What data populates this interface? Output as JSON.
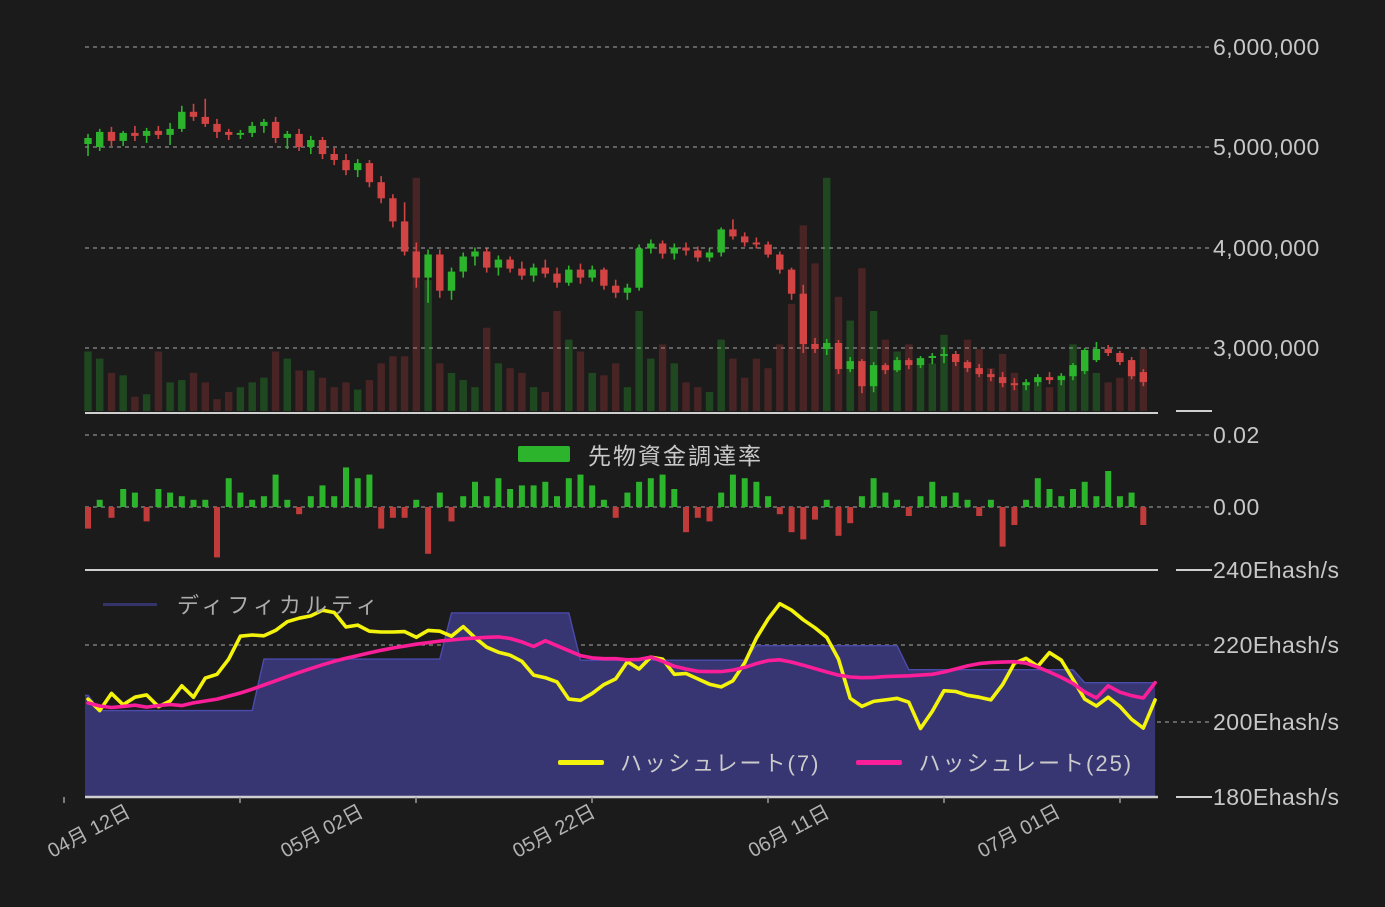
{
  "colors": {
    "background": "#1b1b1b",
    "candle_up": "#2cb42c",
    "candle_down": "#d24444",
    "funding_up": "#2cb42c",
    "funding_down": "#c23b3b",
    "volume_up": "rgba(46,180,46,0.30)",
    "volume_down": "rgba(205,60,60,0.26)",
    "difficulty_fill": "#373572",
    "difficulty_line": "#4b4bad",
    "difficulty_swatch": "#34346a",
    "hashrate7": "#f3f30b",
    "hashrate25": "#fb1e99",
    "grid": "#c4c4c4",
    "border": "#cfcfcf",
    "axis_text": "#c7c7c7"
  },
  "axis_right": {
    "labels": [
      "6,000,000",
      "5,000,000",
      "4,000,000",
      "3,000,000",
      "0.02",
      "0.00",
      "240Ehash/s",
      "220Ehash/s",
      "200Ehash/s",
      "180Ehash/s"
    ]
  },
  "xaxis": {
    "labels": [
      "04月 12日",
      "05月 02日",
      "05月 22日",
      "06月 11日",
      "07月 01日"
    ],
    "label_day_indices": [
      4,
      24,
      44,
      64,
      84
    ]
  },
  "legends": {
    "funding": "先物資金調達率",
    "difficulty": "ディフィカルティ",
    "hashrate7": "ハッシュレート(7)",
    "hashrate25": "ハッシュレート(25)"
  },
  "chart_data": [
    {
      "id": "price",
      "type": "candlestick",
      "unit": "million JPY",
      "ylim": [
        2.4,
        6.2
      ],
      "ytick_values": [
        6000000,
        5000000,
        4000000,
        3000000
      ],
      "grid": true,
      "candles": [
        [
          5.03,
          5.13,
          4.91,
          5.09
        ],
        [
          5.0,
          5.18,
          4.96,
          5.15
        ],
        [
          5.15,
          5.2,
          5.01,
          5.06
        ],
        [
          5.06,
          5.16,
          5.01,
          5.14
        ],
        [
          5.14,
          5.21,
          5.06,
          5.11
        ],
        [
          5.11,
          5.19,
          5.04,
          5.16
        ],
        [
          5.16,
          5.21,
          5.08,
          5.12
        ],
        [
          5.12,
          5.24,
          5.02,
          5.18
        ],
        [
          5.18,
          5.41,
          5.15,
          5.35
        ],
        [
          5.35,
          5.43,
          5.26,
          5.3
        ],
        [
          5.3,
          5.48,
          5.2,
          5.23
        ],
        [
          5.23,
          5.28,
          5.09,
          5.15
        ],
        [
          5.15,
          5.18,
          5.07,
          5.12
        ],
        [
          5.12,
          5.17,
          5.08,
          5.14
        ],
        [
          5.14,
          5.25,
          5.1,
          5.21
        ],
        [
          5.21,
          5.28,
          5.14,
          5.25
        ],
        [
          5.25,
          5.3,
          5.04,
          5.09
        ],
        [
          5.09,
          5.16,
          4.98,
          5.13
        ],
        [
          5.13,
          5.18,
          4.96,
          5.0
        ],
        [
          5.0,
          5.11,
          4.93,
          5.07
        ],
        [
          5.07,
          5.1,
          4.88,
          4.93
        ],
        [
          4.93,
          4.99,
          4.82,
          4.87
        ],
        [
          4.87,
          4.93,
          4.72,
          4.77
        ],
        [
          4.77,
          4.88,
          4.7,
          4.84
        ],
        [
          4.84,
          4.87,
          4.6,
          4.65
        ],
        [
          4.65,
          4.71,
          4.44,
          4.49
        ],
        [
          4.49,
          4.53,
          4.2,
          4.26
        ],
        [
          4.26,
          4.45,
          3.92,
          3.96
        ],
        [
          3.96,
          4.05,
          3.6,
          3.7
        ],
        [
          3.7,
          3.98,
          3.45,
          3.93
        ],
        [
          3.93,
          3.98,
          3.5,
          3.57
        ],
        [
          3.57,
          3.8,
          3.48,
          3.76
        ],
        [
          3.76,
          3.95,
          3.7,
          3.91
        ],
        [
          3.91,
          4.0,
          3.82,
          3.96
        ],
        [
          3.96,
          3.99,
          3.75,
          3.8
        ],
        [
          3.8,
          3.92,
          3.72,
          3.88
        ],
        [
          3.88,
          3.91,
          3.75,
          3.79
        ],
        [
          3.79,
          3.86,
          3.68,
          3.72
        ],
        [
          3.72,
          3.84,
          3.66,
          3.8
        ],
        [
          3.8,
          3.88,
          3.7,
          3.74
        ],
        [
          3.74,
          3.8,
          3.6,
          3.65
        ],
        [
          3.65,
          3.82,
          3.62,
          3.78
        ],
        [
          3.78,
          3.84,
          3.64,
          3.7
        ],
        [
          3.7,
          3.82,
          3.66,
          3.78
        ],
        [
          3.78,
          3.8,
          3.58,
          3.62
        ],
        [
          3.62,
          3.68,
          3.5,
          3.55
        ],
        [
          3.55,
          3.64,
          3.48,
          3.6
        ],
        [
          3.6,
          4.03,
          3.57,
          3.99
        ],
        [
          3.99,
          4.08,
          3.94,
          4.04
        ],
        [
          4.04,
          4.07,
          3.89,
          3.94
        ],
        [
          3.94,
          4.04,
          3.88,
          4.0
        ],
        [
          4.0,
          4.05,
          3.92,
          3.97
        ],
        [
          3.97,
          4.01,
          3.86,
          3.9
        ],
        [
          3.9,
          3.99,
          3.86,
          3.95
        ],
        [
          3.95,
          4.2,
          3.91,
          4.18
        ],
        [
          4.18,
          4.28,
          4.08,
          4.11
        ],
        [
          4.11,
          4.15,
          4.01,
          4.05
        ],
        [
          4.05,
          4.1,
          3.99,
          4.03
        ],
        [
          4.03,
          4.06,
          3.9,
          3.93
        ],
        [
          3.93,
          3.96,
          3.74,
          3.78
        ],
        [
          3.78,
          3.8,
          3.48,
          3.54
        ],
        [
          3.54,
          3.63,
          2.95,
          3.04
        ],
        [
          3.04,
          3.1,
          2.95,
          2.99
        ],
        [
          2.99,
          3.09,
          2.93,
          3.05
        ],
        [
          3.05,
          3.08,
          2.74,
          2.79
        ],
        [
          2.79,
          2.91,
          2.76,
          2.87
        ],
        [
          2.87,
          2.89,
          2.55,
          2.62
        ],
        [
          2.62,
          2.86,
          2.56,
          2.83
        ],
        [
          2.83,
          2.85,
          2.74,
          2.78
        ],
        [
          2.78,
          2.91,
          2.76,
          2.88
        ],
        [
          2.88,
          2.9,
          2.79,
          2.83
        ],
        [
          2.83,
          2.92,
          2.8,
          2.9
        ],
        [
          2.9,
          2.95,
          2.84,
          2.92
        ],
        [
          2.92,
          3.01,
          2.85,
          2.94
        ],
        [
          2.94,
          2.97,
          2.82,
          2.86
        ],
        [
          2.86,
          2.88,
          2.76,
          2.8
        ],
        [
          2.8,
          2.84,
          2.71,
          2.74
        ],
        [
          2.74,
          2.79,
          2.67,
          2.71
        ],
        [
          2.71,
          2.76,
          2.61,
          2.65
        ],
        [
          2.65,
          2.7,
          2.58,
          2.63
        ],
        [
          2.63,
          2.69,
          2.58,
          2.66
        ],
        [
          2.66,
          2.74,
          2.62,
          2.71
        ],
        [
          2.71,
          2.76,
          2.64,
          2.68
        ],
        [
          2.68,
          2.75,
          2.63,
          2.72
        ],
        [
          2.72,
          2.85,
          2.68,
          2.83
        ],
        [
          2.77,
          3.0,
          2.74,
          2.98
        ],
        [
          2.88,
          3.06,
          2.86,
          2.99
        ],
        [
          2.99,
          3.03,
          2.92,
          2.95
        ],
        [
          2.95,
          2.97,
          2.83,
          2.86
        ],
        [
          2.88,
          2.91,
          2.69,
          2.72
        ],
        [
          2.76,
          2.79,
          2.62,
          2.66
        ]
      ],
      "volume_relative": [
        0.25,
        0.22,
        0.16,
        0.15,
        0.06,
        0.07,
        0.25,
        0.12,
        0.13,
        0.16,
        0.12,
        0.05,
        0.08,
        0.1,
        0.12,
        0.14,
        0.25,
        0.22,
        0.17,
        0.17,
        0.14,
        0.1,
        0.12,
        0.09,
        0.13,
        0.2,
        0.23,
        0.23,
        0.98,
        0.55,
        0.2,
        0.16,
        0.13,
        0.1,
        0.35,
        0.2,
        0.18,
        0.16,
        0.1,
        0.08,
        0.42,
        0.3,
        0.25,
        0.16,
        0.15,
        0.2,
        0.1,
        0.42,
        0.22,
        0.28,
        0.2,
        0.12,
        0.1,
        0.08,
        0.3,
        0.22,
        0.14,
        0.22,
        0.18,
        0.28,
        0.45,
        0.78,
        0.62,
        0.98,
        0.48,
        0.38,
        0.6,
        0.42,
        0.3,
        0.25,
        0.28,
        0.22,
        0.2,
        0.32,
        0.22,
        0.3,
        0.26,
        0.18,
        0.24,
        0.16,
        0.12,
        0.14,
        0.1,
        0.15,
        0.28,
        0.2,
        0.16,
        0.12,
        0.14,
        0.2,
        0.26
      ]
    },
    {
      "id": "funding",
      "type": "bar",
      "name": "先物資金調達率",
      "ylim": [
        -0.016,
        0.027
      ],
      "ytick_values": [
        0.02,
        0.0
      ],
      "values_milli": [
        -6,
        2,
        -3,
        5,
        4,
        -4,
        5,
        4,
        3,
        2,
        2,
        -14,
        8,
        4,
        2,
        3,
        9,
        2,
        -2,
        3,
        6,
        3,
        11,
        8,
        9,
        -6,
        -3,
        -3,
        2,
        -13,
        4,
        -4,
        3,
        7,
        3,
        8,
        5,
        6,
        6,
        7,
        3,
        8,
        9,
        6,
        2,
        -3,
        4,
        7,
        8,
        9,
        5,
        -7,
        -3,
        -4,
        4,
        9,
        8,
        7,
        3,
        -2,
        -7,
        -9,
        -3.5,
        2,
        -8,
        -4.5,
        3,
        8,
        4,
        2,
        -2.5,
        3,
        7,
        3,
        4,
        2,
        -2.5,
        2,
        -11,
        -5,
        2,
        8,
        5,
        3,
        5,
        7,
        3,
        10,
        3,
        4,
        -5
      ]
    },
    {
      "id": "hashrate",
      "type": "line",
      "unit": "Ehash/s",
      "ylim": [
        180,
        240
      ],
      "ytick_values": [
        240,
        220,
        200,
        180
      ],
      "series": [
        {
          "name": "ディフィカルティ",
          "type": "area-step",
          "values": [
            207,
            203,
            203,
            203,
            203,
            203,
            203,
            203,
            203,
            203,
            203,
            203,
            203,
            203,
            203,
            216.5,
            216.5,
            216.5,
            216.5,
            216.5,
            216.5,
            216.5,
            216.5,
            216.5,
            216.5,
            216.5,
            216.5,
            216.5,
            216.5,
            216.5,
            216.5,
            228.6,
            228.6,
            228.6,
            228.6,
            228.6,
            228.6,
            228.6,
            228.6,
            228.6,
            228.6,
            228.6,
            216.2,
            216.2,
            216.2,
            216.2,
            216.2,
            216.2,
            216.2,
            216.2,
            216.2,
            216.2,
            216.2,
            216.2,
            216.2,
            216.2,
            216.2,
            220,
            220,
            220,
            220,
            220,
            220,
            220,
            220,
            220,
            220,
            220,
            220,
            220,
            213.7,
            213.7,
            213.7,
            213.7,
            213.7,
            213.7,
            213.7,
            213.7,
            213.7,
            213.7,
            213.7,
            213.7,
            213.7,
            213.7,
            213.7,
            210.3,
            210.3,
            210.3,
            210.3,
            210.3,
            210.3,
            210.3
          ]
        },
        {
          "name": "ハッシュレート(7)",
          "type": "line",
          "values": [
            206,
            203,
            207.5,
            204.5,
            206.5,
            207.1,
            204,
            205.5,
            209.5,
            206.5,
            211.5,
            212.5,
            216.5,
            222.5,
            222.8,
            222.6,
            224,
            226.3,
            227.2,
            227.8,
            229.3,
            228.7,
            224.9,
            225.4,
            223.8,
            223.6,
            223.6,
            223.7,
            222.2,
            224,
            223.8,
            222.5,
            225,
            222.1,
            219.6,
            218.3,
            217.5,
            215.9,
            212.3,
            211.6,
            210.5,
            206,
            205.7,
            207.5,
            209.8,
            211.3,
            215.8,
            213.9,
            217,
            216.5,
            212.5,
            212.7,
            211.3,
            209.9,
            209.2,
            210.8,
            215.5,
            222,
            227,
            231,
            229.3,
            226.8,
            224.7,
            222.2,
            216.5,
            206.2,
            204.1,
            205.4,
            205.8,
            206.2,
            205.2,
            198.3,
            202.8,
            208.2,
            208,
            207,
            206.5,
            205.8,
            209.8,
            215.4,
            216.7,
            214.6,
            218.2,
            216.2,
            211.2,
            206,
            204.2,
            206.5,
            204.1,
            200.7,
            198.4,
            205.8
          ]
        },
        {
          "name": "ハッシュレート(25)",
          "type": "line",
          "values": [
            205,
            204.2,
            203.8,
            204.1,
            204.4,
            203.9,
            204.3,
            204.6,
            204.3,
            205,
            205.5,
            206,
            206.8,
            207.6,
            208.6,
            209.7,
            210.8,
            211.9,
            213,
            214,
            215,
            215.9,
            216.7,
            217.4,
            218.1,
            218.8,
            219.4,
            219.9,
            220.4,
            220.8,
            221.2,
            221.5,
            221.8,
            222,
            222.2,
            222.3,
            221.9,
            221,
            219.8,
            221.3,
            220,
            218.7,
            217.4,
            216.8,
            216.6,
            216.6,
            216.3,
            216.4,
            217,
            215.9,
            214.6,
            213.9,
            213.3,
            213.2,
            213.2,
            213.6,
            214.3,
            215.3,
            216.1,
            216.3,
            215.7,
            214.9,
            214,
            213.1,
            212.3,
            211.8,
            211.6,
            211.7,
            211.9,
            212,
            212.1,
            212.3,
            212.5,
            213.1,
            213.9,
            214.7,
            215.3,
            215.6,
            215.7,
            215.8,
            215.4,
            214.4,
            213.1,
            211.7,
            210.1,
            207.9,
            206.3,
            209.5,
            207.8,
            206.9,
            206.3,
            210.3
          ]
        }
      ]
    }
  ]
}
